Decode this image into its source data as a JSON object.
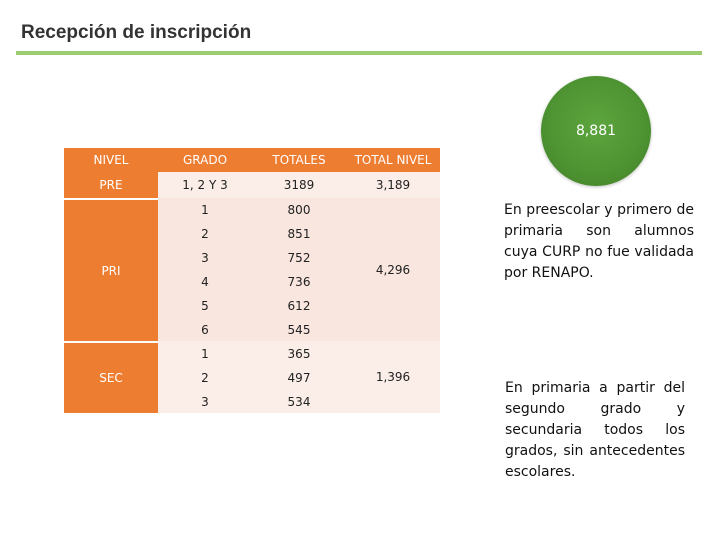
{
  "title": "Recepción de inscripción",
  "total_circle": "8,881",
  "table": {
    "headers": [
      "NIVEL",
      "GRADO",
      "TOTALES",
      "TOTAL NIVEL"
    ],
    "levels": [
      {
        "label": "PRE",
        "total": "3,189",
        "rows": [
          {
            "grado": "1, 2 Y 3",
            "total": "3189"
          }
        ]
      },
      {
        "label": "PRI",
        "total": "4,296",
        "rows": [
          {
            "grado": "1",
            "total": "800"
          },
          {
            "grado": "2",
            "total": "851"
          },
          {
            "grado": "3",
            "total": "752"
          },
          {
            "grado": "4",
            "total": "736"
          },
          {
            "grado": "5",
            "total": "612"
          },
          {
            "grado": "6",
            "total": "545"
          }
        ]
      },
      {
        "label": "SEC",
        "total": "1,396",
        "rows": [
          {
            "grado": "1",
            "total": "365"
          },
          {
            "grado": "2",
            "total": "497"
          },
          {
            "grado": "3",
            "total": "534"
          }
        ]
      }
    ]
  },
  "notes": {
    "note1": "En preescolar y primero de primaria son alumnos cuya CURP no fue validada por RENAPO.",
    "note2": "En primaria a partir del segundo grado y secundaria todos los grados, sin antecedentes escolares."
  },
  "colors": {
    "header": "#ed7d31",
    "band": "#f8e6df",
    "circle": "#4f9533",
    "rule": "#9bcc6f"
  }
}
